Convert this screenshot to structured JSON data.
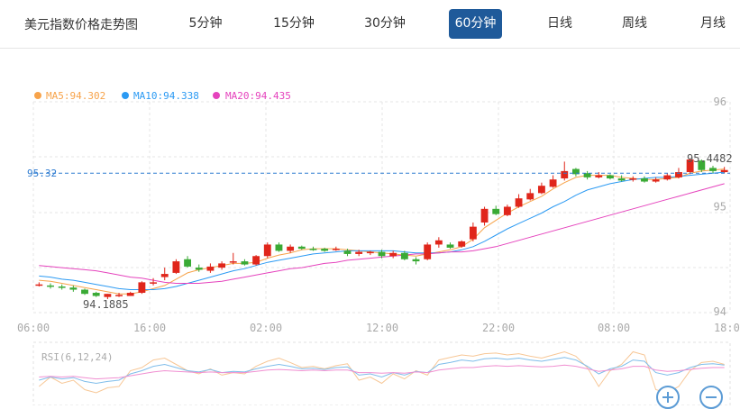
{
  "tabs": {
    "title": "美元指数价格走势图",
    "items": [
      {
        "label": "5分钟",
        "active": false
      },
      {
        "label": "15分钟",
        "active": false
      },
      {
        "label": "30分钟",
        "active": false
      },
      {
        "label": "60分钟",
        "active": true
      },
      {
        "label": "日线",
        "active": false
      },
      {
        "label": "周线",
        "active": false
      },
      {
        "label": "月线",
        "active": false
      }
    ]
  },
  "legend": [
    {
      "label": "MA5:94.302",
      "color": "#f7a34a"
    },
    {
      "label": "MA10:94.338",
      "color": "#2b9af3"
    },
    {
      "label": "MA20:94.435",
      "color": "#e543bd"
    }
  ],
  "current_price": "95.32",
  "annotations": {
    "low": "94.1885",
    "high": "95.4482"
  },
  "rsi_label": "RSI(6,12,24)",
  "colors": {
    "up": "#e0261b",
    "down": "#3aaa35",
    "current_line": "#2b7ad0",
    "active_tab": "#1f5a9a"
  },
  "chart_data": {
    "type": "candlestick",
    "x_ticks": [
      "06:00",
      "16:00",
      "02:00",
      "12:00",
      "22:00",
      "08:00",
      "18:00"
    ],
    "y_ticks": [
      "96",
      "95",
      "94"
    ],
    "ylim": [
      94,
      96
    ],
    "candles": [
      [
        94.26,
        94.26,
        94.28,
        94.24
      ],
      [
        94.25,
        94.24,
        94.27,
        94.22
      ],
      [
        94.24,
        94.23,
        94.26,
        94.21
      ],
      [
        94.23,
        94.21,
        94.25,
        94.19
      ],
      [
        94.21,
        94.17,
        94.22,
        94.16
      ],
      [
        94.18,
        94.15,
        94.19,
        94.14
      ],
      [
        94.14,
        94.17,
        94.17,
        94.12
      ],
      [
        94.16,
        94.16,
        94.18,
        94.14
      ],
      [
        94.15,
        94.18,
        94.19,
        94.15
      ],
      [
        94.18,
        94.28,
        94.29,
        94.17
      ],
      [
        94.27,
        94.28,
        94.32,
        94.25
      ],
      [
        94.33,
        94.36,
        94.42,
        94.3
      ],
      [
        94.37,
        94.48,
        94.5,
        94.36
      ],
      [
        94.5,
        94.43,
        94.53,
        94.42
      ],
      [
        94.42,
        94.4,
        94.45,
        94.38
      ],
      [
        94.39,
        94.43,
        94.46,
        94.37
      ],
      [
        94.42,
        94.46,
        94.48,
        94.4
      ],
      [
        94.47,
        94.48,
        94.56,
        94.45
      ],
      [
        94.48,
        94.45,
        94.5,
        94.44
      ],
      [
        94.45,
        94.53,
        94.54,
        94.44
      ],
      [
        94.53,
        94.64,
        94.66,
        94.51
      ],
      [
        94.64,
        94.58,
        94.66,
        94.57
      ],
      [
        94.58,
        94.62,
        94.64,
        94.56
      ],
      [
        94.62,
        94.6,
        94.63,
        94.59
      ],
      [
        94.6,
        94.59,
        94.62,
        94.58
      ],
      [
        94.6,
        94.58,
        94.61,
        94.57
      ],
      [
        94.59,
        94.6,
        94.62,
        94.58
      ],
      [
        94.58,
        94.55,
        94.6,
        94.53
      ],
      [
        94.55,
        94.57,
        94.59,
        94.53
      ],
      [
        94.56,
        94.57,
        94.58,
        94.54
      ],
      [
        94.57,
        94.53,
        94.59,
        94.51
      ],
      [
        94.53,
        94.56,
        94.58,
        94.51
      ],
      [
        94.56,
        94.5,
        94.58,
        94.49
      ],
      [
        94.5,
        94.48,
        94.52,
        94.45
      ],
      [
        94.5,
        94.64,
        94.66,
        94.49
      ],
      [
        94.64,
        94.68,
        94.71,
        94.61
      ],
      [
        94.64,
        94.61,
        94.66,
        94.6
      ],
      [
        94.62,
        94.67,
        94.68,
        94.61
      ],
      [
        94.69,
        94.81,
        94.85,
        94.67
      ],
      [
        94.85,
        94.98,
        95.0,
        94.82
      ],
      [
        94.98,
        94.93,
        95.01,
        94.92
      ],
      [
        94.92,
        95.0,
        95.02,
        94.91
      ],
      [
        95.0,
        95.08,
        95.12,
        94.99
      ],
      [
        95.07,
        95.13,
        95.17,
        95.06
      ],
      [
        95.13,
        95.2,
        95.23,
        95.12
      ],
      [
        95.19,
        95.26,
        95.3,
        95.18
      ],
      [
        95.27,
        95.34,
        95.43,
        95.25
      ],
      [
        95.36,
        95.31,
        95.37,
        95.29
      ],
      [
        95.32,
        95.28,
        95.34,
        95.26
      ],
      [
        95.28,
        95.3,
        95.33,
        95.27
      ],
      [
        95.3,
        95.27,
        95.31,
        95.26
      ],
      [
        95.27,
        95.25,
        95.3,
        95.24
      ],
      [
        95.26,
        95.27,
        95.29,
        95.24
      ],
      [
        95.27,
        95.24,
        95.29,
        95.23
      ],
      [
        95.24,
        95.26,
        95.28,
        95.23
      ],
      [
        95.26,
        95.3,
        95.32,
        95.25
      ],
      [
        95.28,
        95.33,
        95.37,
        95.27
      ],
      [
        95.33,
        95.45,
        95.46,
        95.31
      ],
      [
        95.44,
        95.35,
        95.45,
        95.33
      ],
      [
        95.37,
        95.34,
        95.39,
        95.32
      ],
      [
        95.33,
        95.35,
        95.38,
        95.32
      ]
    ],
    "ma5": [
      94.3,
      94.29,
      94.27,
      94.25,
      94.23,
      94.21,
      94.19,
      94.17,
      94.17,
      94.19,
      94.22,
      94.25,
      94.31,
      94.37,
      94.4,
      94.42,
      94.44,
      94.46,
      94.46,
      94.47,
      94.51,
      94.54,
      94.56,
      94.59,
      94.6,
      94.6,
      94.6,
      94.59,
      94.58,
      94.57,
      94.56,
      94.55,
      94.54,
      94.53,
      94.55,
      94.57,
      94.59,
      94.62,
      94.69,
      94.8,
      94.87,
      94.94,
      95.0,
      95.05,
      95.1,
      95.17,
      95.23,
      95.28,
      95.3,
      95.3,
      95.3,
      95.28,
      95.27,
      95.26,
      95.26,
      95.27,
      95.28,
      95.32,
      95.34,
      95.35,
      95.36
    ],
    "ma10": [
      94.34,
      94.33,
      94.31,
      94.3,
      94.28,
      94.26,
      94.24,
      94.22,
      94.21,
      94.21,
      94.21,
      94.22,
      94.24,
      94.27,
      94.3,
      94.33,
      94.36,
      94.39,
      94.41,
      94.44,
      94.47,
      94.49,
      94.51,
      94.53,
      94.55,
      94.56,
      94.57,
      94.58,
      94.58,
      94.58,
      94.58,
      94.58,
      94.57,
      94.56,
      94.56,
      94.56,
      94.57,
      94.59,
      94.62,
      94.67,
      94.73,
      94.79,
      94.84,
      94.89,
      94.94,
      95.0,
      95.05,
      95.11,
      95.16,
      95.19,
      95.22,
      95.24,
      95.26,
      95.27,
      95.28,
      95.28,
      95.29,
      95.3,
      95.31,
      95.32,
      95.33
    ],
    "ma20": [
      94.44,
      94.43,
      94.42,
      94.41,
      94.4,
      94.39,
      94.37,
      94.35,
      94.33,
      94.32,
      94.3,
      94.28,
      94.27,
      94.27,
      94.27,
      94.28,
      94.29,
      94.31,
      94.33,
      94.35,
      94.37,
      94.39,
      94.41,
      94.42,
      94.44,
      94.46,
      94.47,
      94.49,
      94.5,
      94.51,
      94.52,
      94.53,
      94.54,
      94.55,
      94.55,
      94.56,
      94.57,
      94.57,
      94.58,
      94.6,
      94.62,
      94.65,
      94.68,
      94.71,
      94.74,
      94.77,
      94.8,
      94.83,
      94.86,
      94.89,
      94.92,
      94.95,
      94.98,
      95.01,
      95.04,
      95.07,
      95.1,
      95.13,
      95.16,
      95.19,
      95.22
    ],
    "rsi_ylim": [
      0,
      100
    ],
    "rsi6": [
      30,
      45,
      35,
      40,
      25,
      20,
      28,
      30,
      55,
      60,
      72,
      75,
      65,
      55,
      50,
      58,
      48,
      52,
      50,
      62,
      70,
      75,
      68,
      60,
      62,
      58,
      63,
      66,
      40,
      45,
      35,
      50,
      42,
      55,
      48,
      72,
      76,
      80,
      78,
      82,
      83,
      80,
      82,
      78,
      75,
      80,
      85,
      78,
      60,
      30,
      55,
      65,
      85,
      80,
      25,
      20,
      30,
      55,
      68,
      70,
      65
    ],
    "rsi12": [
      40,
      45,
      42,
      44,
      38,
      35,
      38,
      40,
      50,
      55,
      62,
      65,
      60,
      55,
      53,
      57,
      52,
      54,
      53,
      58,
      62,
      65,
      62,
      58,
      59,
      57,
      60,
      61,
      48,
      50,
      45,
      52,
      48,
      54,
      52,
      65,
      68,
      72,
      70,
      74,
      75,
      73,
      75,
      72,
      70,
      73,
      76,
      72,
      62,
      50,
      58,
      62,
      72,
      70,
      52,
      48,
      52,
      60,
      65,
      66,
      64
    ],
    "rsi24": [
      45,
      46,
      45,
      46,
      44,
      42,
      43,
      44,
      47,
      50,
      53,
      55,
      54,
      53,
      52,
      53,
      52,
      52,
      52,
      54,
      56,
      57,
      56,
      55,
      56,
      55,
      56,
      56,
      52,
      52,
      51,
      52,
      51,
      53,
      52,
      56,
      58,
      60,
      60,
      62,
      63,
      62,
      63,
      62,
      61,
      62,
      64,
      62,
      58,
      54,
      56,
      58,
      62,
      62,
      56,
      54,
      55,
      57,
      59,
      60,
      60
    ],
    "rsi_colors": [
      "#f7c796",
      "#7fbdea",
      "#f08fd1"
    ]
  }
}
